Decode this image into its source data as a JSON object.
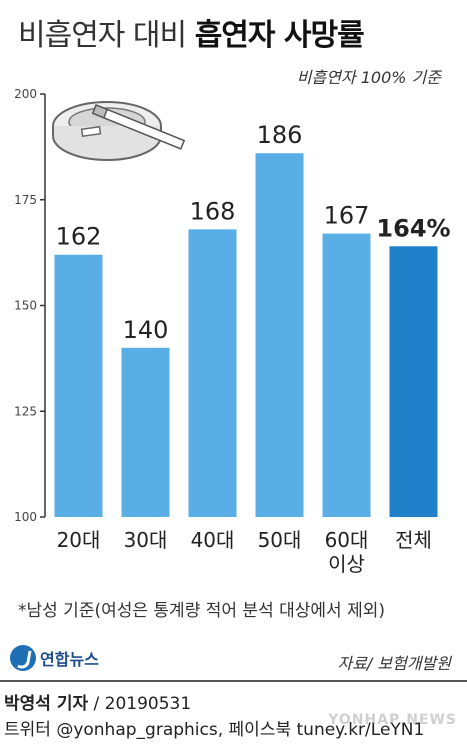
{
  "header": {
    "title_light": "비흡연자 대비 ",
    "title_bold": "흡연자 사망률",
    "subtitle": "비흡연자 100% 기준"
  },
  "chart_data": {
    "type": "bar",
    "categories": [
      "20대",
      "30대",
      "40대",
      "50대",
      "60대\n이상",
      "전체"
    ],
    "values": [
      162,
      140,
      168,
      186,
      167,
      164
    ],
    "value_labels": [
      "162",
      "140",
      "168",
      "186",
      "167",
      "164%"
    ],
    "ylim": [
      100,
      200
    ],
    "yticks": [
      100,
      125,
      150,
      175,
      200
    ],
    "grid": false,
    "colors": {
      "bar": "#5aaee6",
      "highlight": "#1f7fc9",
      "axis": "#333333"
    },
    "highlight_index": 5
  },
  "footnote": "*남성 기준(여성은 통계량 적어 분석 대상에서 제외)",
  "logo": {
    "text": "연합뉴스",
    "icon": "yonhap-logo-icon"
  },
  "source": "자료/ 보험개발원",
  "credit": {
    "reporter": "박영석 기자",
    "date": " / 20190531",
    "contact": "트위터 @yonhap_graphics, 페이스북 tuney.kr/LeYN1"
  },
  "illustration": {
    "icon": "ashtray-cigarette-icon"
  }
}
